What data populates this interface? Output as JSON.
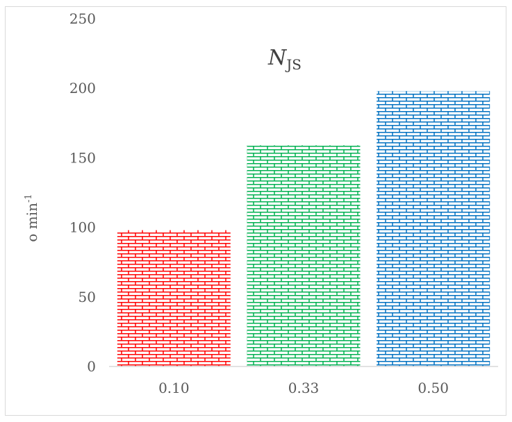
{
  "chart_data": {
    "type": "bar",
    "title_main": "N",
    "title_sub": "JS",
    "ylabel_main": "o min",
    "ylabel_sup": "-1",
    "xlabel": "",
    "categories": [
      "0.10",
      "0.33",
      "0.50"
    ],
    "values": [
      98,
      159,
      198
    ],
    "colors": [
      "#ff0000",
      "#00b050",
      "#0070c0"
    ],
    "ylim": [
      0,
      250
    ],
    "yticks": [
      0,
      50,
      100,
      150,
      200,
      250
    ],
    "pattern": "brick",
    "grid": false,
    "legend": "none"
  }
}
